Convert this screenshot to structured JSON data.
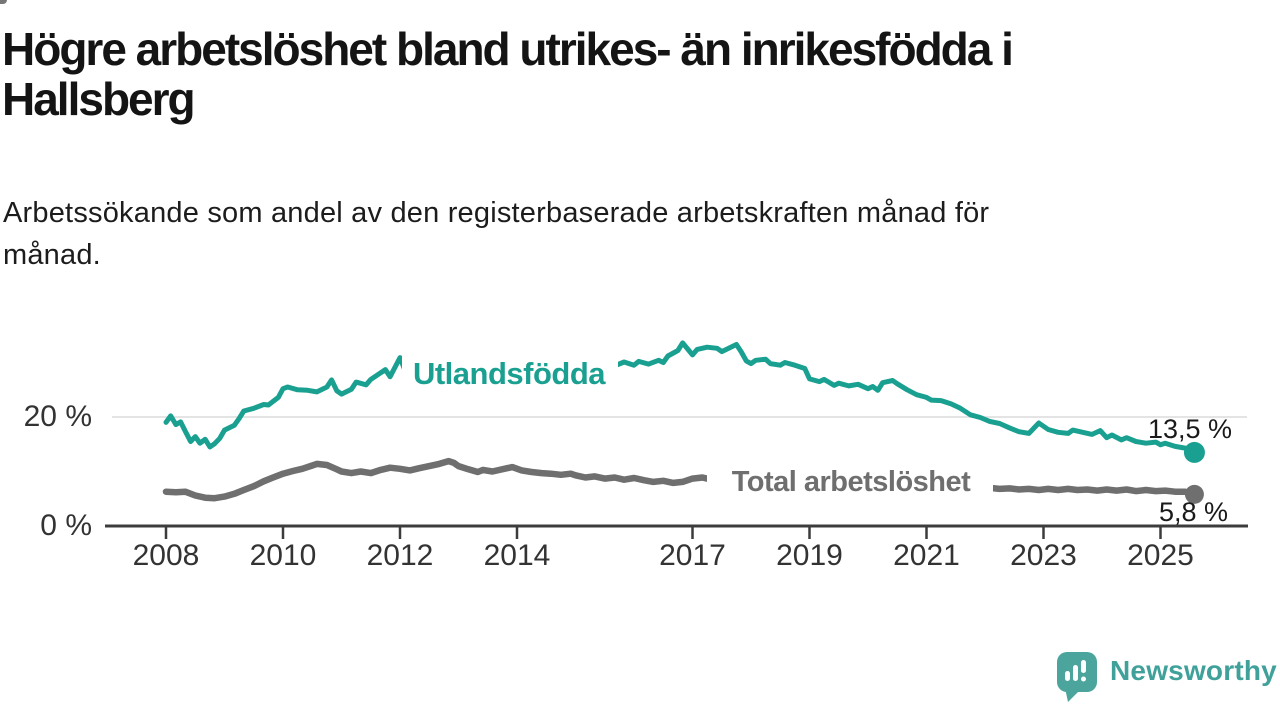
{
  "header": {
    "title": "Högre arbetslöshet bland utrikes- än inrikesfödda i\nHallsberg",
    "subtitle": "Arbetssökande som andel av den registerbaserade arbetskraften månad för\nmånad."
  },
  "footer": {
    "brand": "Newsworthy",
    "logo_icon": "newsworthy-speech-bubble-bar-chart-icon",
    "brand_color": "#3fa19a"
  },
  "colors": {
    "series_utlandsfodda": "#1aa091",
    "series_total": "#6f6f6f",
    "axis": "#3c3c3c",
    "grid": "#dcdcdc",
    "tick_text": "#333333",
    "end_label_text": "#1a1a1a"
  },
  "chart_data": {
    "type": "line",
    "title": "Högre arbetslöshet bland utrikes- än inrikesfödda i Hallsberg",
    "subtitle": "Arbetssökande som andel av den registerbaserade arbetskraften månad för månad.",
    "x_axis": {
      "unit": "year",
      "ticks": [
        2008,
        2010,
        2012,
        2014,
        2017,
        2019,
        2021,
        2023,
        2025
      ],
      "range": [
        2007.0,
        2026.4
      ]
    },
    "y_axis": {
      "unit": "%",
      "ticks": [
        {
          "value": 0,
          "label": "0 %"
        },
        {
          "value": 20,
          "label": "20 %"
        }
      ],
      "range": [
        0,
        36
      ],
      "grid": true
    },
    "legend_position": "inline-labels",
    "series": [
      {
        "name": "Total arbetslöshet",
        "color": "#6f6f6f",
        "end_label": "5,8 %",
        "end_value": 5.8,
        "points": [
          [
            2008.0,
            6.3
          ],
          [
            2008.17,
            6.2
          ],
          [
            2008.33,
            6.3
          ],
          [
            2008.5,
            5.6
          ],
          [
            2008.67,
            5.2
          ],
          [
            2008.83,
            5.1
          ],
          [
            2009.0,
            5.4
          ],
          [
            2009.17,
            5.9
          ],
          [
            2009.33,
            6.6
          ],
          [
            2009.5,
            7.3
          ],
          [
            2009.67,
            8.2
          ],
          [
            2009.83,
            8.9
          ],
          [
            2010.0,
            9.6
          ],
          [
            2010.17,
            10.1
          ],
          [
            2010.33,
            10.5
          ],
          [
            2010.5,
            11.1
          ],
          [
            2010.58,
            11.4
          ],
          [
            2010.75,
            11.2
          ],
          [
            2010.92,
            10.4
          ],
          [
            2011.0,
            10.0
          ],
          [
            2011.17,
            9.7
          ],
          [
            2011.33,
            10.0
          ],
          [
            2011.5,
            9.7
          ],
          [
            2011.67,
            10.3
          ],
          [
            2011.83,
            10.7
          ],
          [
            2012.0,
            10.5
          ],
          [
            2012.17,
            10.2
          ],
          [
            2012.33,
            10.6
          ],
          [
            2012.5,
            11.0
          ],
          [
            2012.67,
            11.4
          ],
          [
            2012.83,
            11.9
          ],
          [
            2012.92,
            11.6
          ],
          [
            2013.0,
            11.0
          ],
          [
            2013.17,
            10.4
          ],
          [
            2013.33,
            9.9
          ],
          [
            2013.42,
            10.3
          ],
          [
            2013.58,
            10.0
          ],
          [
            2013.83,
            10.6
          ],
          [
            2013.92,
            10.8
          ],
          [
            2014.08,
            10.2
          ],
          [
            2014.25,
            9.9
          ],
          [
            2014.42,
            9.7
          ],
          [
            2014.58,
            9.6
          ],
          [
            2014.75,
            9.4
          ],
          [
            2014.92,
            9.6
          ],
          [
            2015.0,
            9.3
          ],
          [
            2015.17,
            8.9
          ],
          [
            2015.33,
            9.1
          ],
          [
            2015.5,
            8.7
          ],
          [
            2015.67,
            8.9
          ],
          [
            2015.83,
            8.5
          ],
          [
            2016.0,
            8.8
          ],
          [
            2016.17,
            8.4
          ],
          [
            2016.33,
            8.1
          ],
          [
            2016.5,
            8.3
          ],
          [
            2016.67,
            7.9
          ],
          [
            2016.83,
            8.1
          ],
          [
            2017.0,
            8.7
          ],
          [
            2017.17,
            8.9
          ],
          [
            2017.33,
            8.5
          ],
          [
            2017.58,
            8.3
          ],
          [
            2017.83,
            8.1
          ],
          [
            2018.08,
            8.0
          ],
          [
            2018.33,
            7.8
          ],
          [
            2018.58,
            7.7
          ],
          [
            2018.83,
            7.6
          ],
          [
            2019.08,
            7.5
          ],
          [
            2019.33,
            7.4
          ],
          [
            2019.58,
            7.3
          ],
          [
            2019.83,
            7.3
          ],
          [
            2020.08,
            7.6
          ],
          [
            2020.33,
            7.8
          ],
          [
            2020.58,
            7.6
          ],
          [
            2020.83,
            7.4
          ],
          [
            2021.08,
            7.3
          ],
          [
            2021.33,
            7.2
          ],
          [
            2021.58,
            7.1
          ],
          [
            2021.83,
            7.0
          ],
          [
            2022.08,
            7.0
          ],
          [
            2022.25,
            6.8
          ],
          [
            2022.42,
            6.9
          ],
          [
            2022.58,
            6.7
          ],
          [
            2022.75,
            6.8
          ],
          [
            2022.92,
            6.6
          ],
          [
            2023.08,
            6.8
          ],
          [
            2023.25,
            6.6
          ],
          [
            2023.42,
            6.8
          ],
          [
            2023.58,
            6.6
          ],
          [
            2023.75,
            6.7
          ],
          [
            2023.92,
            6.5
          ],
          [
            2024.08,
            6.7
          ],
          [
            2024.25,
            6.5
          ],
          [
            2024.42,
            6.7
          ],
          [
            2024.58,
            6.4
          ],
          [
            2024.75,
            6.6
          ],
          [
            2024.92,
            6.4
          ],
          [
            2025.08,
            6.5
          ],
          [
            2025.25,
            6.3
          ],
          [
            2025.42,
            6.3
          ],
          [
            2025.58,
            5.8
          ]
        ]
      },
      {
        "name": "Utlandsfödda",
        "color": "#1aa091",
        "end_label": "13,5 %",
        "end_value": 13.5,
        "points": [
          [
            2008.0,
            19.0
          ],
          [
            2008.08,
            20.2
          ],
          [
            2008.17,
            18.6
          ],
          [
            2008.25,
            19.1
          ],
          [
            2008.33,
            17.4
          ],
          [
            2008.42,
            15.5
          ],
          [
            2008.5,
            16.4
          ],
          [
            2008.58,
            15.2
          ],
          [
            2008.67,
            15.9
          ],
          [
            2008.75,
            14.5
          ],
          [
            2008.83,
            15.1
          ],
          [
            2008.92,
            16.1
          ],
          [
            2009.0,
            17.6
          ],
          [
            2009.17,
            18.5
          ],
          [
            2009.25,
            19.7
          ],
          [
            2009.33,
            21.1
          ],
          [
            2009.5,
            21.6
          ],
          [
            2009.67,
            22.3
          ],
          [
            2009.75,
            22.2
          ],
          [
            2009.92,
            23.6
          ],
          [
            2010.0,
            25.2
          ],
          [
            2010.08,
            25.5
          ],
          [
            2010.25,
            25.0
          ],
          [
            2010.42,
            24.9
          ],
          [
            2010.58,
            24.6
          ],
          [
            2010.75,
            25.5
          ],
          [
            2010.83,
            26.8
          ],
          [
            2010.92,
            24.8
          ],
          [
            2011.0,
            24.2
          ],
          [
            2011.17,
            25.1
          ],
          [
            2011.25,
            26.4
          ],
          [
            2011.42,
            25.9
          ],
          [
            2011.5,
            26.9
          ],
          [
            2011.75,
            28.7
          ],
          [
            2011.83,
            27.4
          ],
          [
            2012.0,
            30.9
          ],
          [
            2012.08,
            28.7
          ],
          [
            2012.25,
            29.8
          ],
          [
            2012.42,
            30.3
          ],
          [
            2012.58,
            29.2
          ],
          [
            2012.75,
            29.9
          ],
          [
            2013.0,
            28.8
          ],
          [
            2013.25,
            29.6
          ],
          [
            2013.5,
            30.2
          ],
          [
            2013.75,
            29.4
          ],
          [
            2014.0,
            28.8
          ],
          [
            2014.25,
            29.8
          ],
          [
            2014.5,
            30.4
          ],
          [
            2014.75,
            29.5
          ],
          [
            2015.0,
            29.0
          ],
          [
            2015.25,
            29.7
          ],
          [
            2015.5,
            30.1
          ],
          [
            2015.67,
            29.4
          ],
          [
            2015.83,
            30.1
          ],
          [
            2016.0,
            29.5
          ],
          [
            2016.08,
            30.2
          ],
          [
            2016.25,
            29.7
          ],
          [
            2016.42,
            30.4
          ],
          [
            2016.5,
            30.0
          ],
          [
            2016.58,
            31.2
          ],
          [
            2016.75,
            32.2
          ],
          [
            2016.83,
            33.6
          ],
          [
            2017.0,
            31.4
          ],
          [
            2017.08,
            32.4
          ],
          [
            2017.25,
            32.8
          ],
          [
            2017.42,
            32.6
          ],
          [
            2017.5,
            32.0
          ],
          [
            2017.58,
            32.4
          ],
          [
            2017.75,
            33.3
          ],
          [
            2017.83,
            32.0
          ],
          [
            2017.92,
            30.3
          ],
          [
            2018.0,
            29.8
          ],
          [
            2018.08,
            30.4
          ],
          [
            2018.25,
            30.6
          ],
          [
            2018.33,
            29.8
          ],
          [
            2018.5,
            29.5
          ],
          [
            2018.58,
            30.0
          ],
          [
            2018.75,
            29.5
          ],
          [
            2018.92,
            28.9
          ],
          [
            2019.0,
            27.0
          ],
          [
            2019.17,
            26.5
          ],
          [
            2019.25,
            26.9
          ],
          [
            2019.42,
            25.8
          ],
          [
            2019.5,
            26.2
          ],
          [
            2019.67,
            25.7
          ],
          [
            2019.83,
            26.0
          ],
          [
            2020.0,
            25.2
          ],
          [
            2020.08,
            25.6
          ],
          [
            2020.17,
            24.9
          ],
          [
            2020.25,
            26.3
          ],
          [
            2020.42,
            26.7
          ],
          [
            2020.5,
            26.1
          ],
          [
            2020.67,
            25.0
          ],
          [
            2020.83,
            24.1
          ],
          [
            2021.0,
            23.6
          ],
          [
            2021.08,
            23.1
          ],
          [
            2021.25,
            23.0
          ],
          [
            2021.42,
            22.4
          ],
          [
            2021.58,
            21.6
          ],
          [
            2021.75,
            20.4
          ],
          [
            2021.92,
            19.9
          ],
          [
            2022.08,
            19.2
          ],
          [
            2022.25,
            18.8
          ],
          [
            2022.42,
            18.0
          ],
          [
            2022.58,
            17.3
          ],
          [
            2022.75,
            17.0
          ],
          [
            2022.92,
            18.9
          ],
          [
            2023.08,
            17.7
          ],
          [
            2023.25,
            17.2
          ],
          [
            2023.42,
            17.0
          ],
          [
            2023.5,
            17.6
          ],
          [
            2023.67,
            17.2
          ],
          [
            2023.83,
            16.8
          ],
          [
            2023.97,
            17.5
          ],
          [
            2024.08,
            16.2
          ],
          [
            2024.17,
            16.7
          ],
          [
            2024.33,
            15.8
          ],
          [
            2024.42,
            16.2
          ],
          [
            2024.58,
            15.5
          ],
          [
            2024.75,
            15.2
          ],
          [
            2024.92,
            15.4
          ],
          [
            2025.0,
            14.9
          ],
          [
            2025.08,
            15.2
          ],
          [
            2025.25,
            14.6
          ],
          [
            2025.42,
            14.3
          ],
          [
            2025.58,
            13.5
          ]
        ]
      }
    ]
  }
}
